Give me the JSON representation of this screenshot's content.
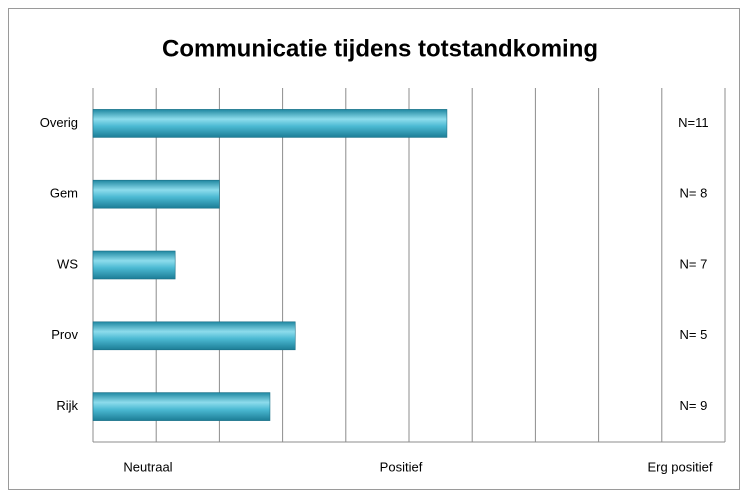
{
  "chart_data": {
    "type": "barh",
    "title": "Communicatie tijdens totstandkoming",
    "categories": [
      "Overig",
      "Gem",
      "WS",
      "Prov",
      "Rijk"
    ],
    "values": [
      5.6,
      2.0,
      1.3,
      3.2,
      2.8
    ],
    "n_labels": [
      "N=11",
      "N= 8",
      "N= 7",
      "N= 5",
      "N= 9"
    ],
    "axis_labels": [
      "Neutraal",
      "Positief",
      "Erg positief"
    ],
    "color": "#3aa9c4",
    "xlim": [
      0,
      10
    ],
    "xticks": [
      0,
      1,
      2,
      3,
      4,
      5,
      6,
      7,
      8,
      9,
      10
    ],
    "grid": true
  }
}
